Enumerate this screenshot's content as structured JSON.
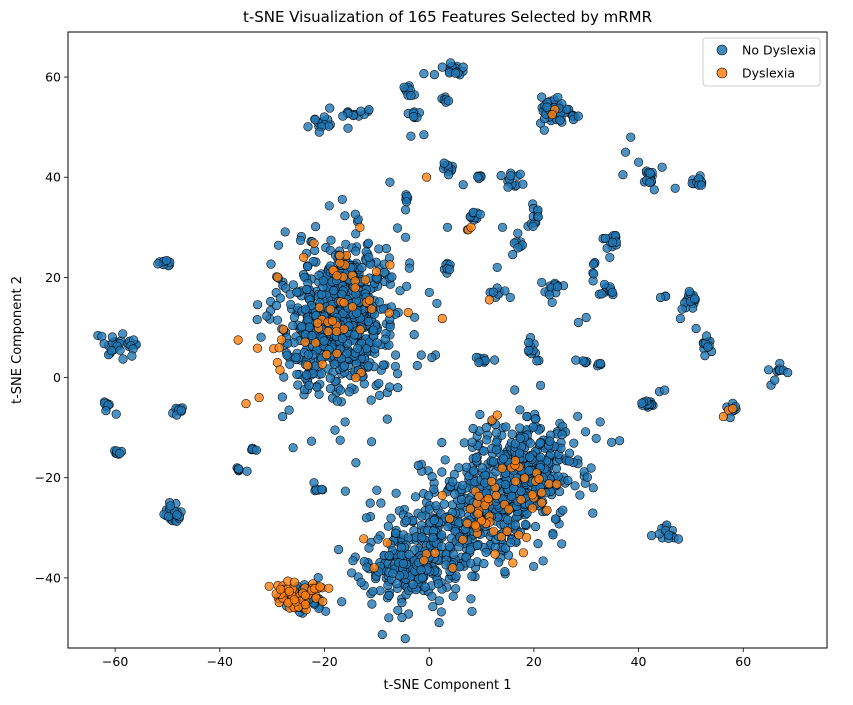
{
  "chart_data": {
    "type": "scatter",
    "title": "t-SNE Visualization of 165 Features Selected by mRMR",
    "xlabel": "t-SNE Component 1",
    "ylabel": "t-SNE Component 2",
    "xlim": [
      -69,
      76
    ],
    "ylim": [
      -54,
      69
    ],
    "xticks": [
      -60,
      -40,
      -20,
      0,
      20,
      40,
      60
    ],
    "yticks": [
      -40,
      -20,
      0,
      20,
      40,
      60
    ],
    "xtick_labels": [
      "−60",
      "−40",
      "−20",
      "0",
      "20",
      "40",
      "60"
    ],
    "ytick_labels": [
      "−40",
      "−20",
      "0",
      "20",
      "40",
      "60"
    ],
    "grid": false,
    "legend_position": "top-right",
    "series": [
      {
        "name": "No Dyslexia",
        "color": "#1f77b4",
        "clusters": [
          {
            "cx": -17,
            "cy": 12,
            "rx": 10,
            "ry": 14,
            "rot": -10,
            "n": 700
          },
          {
            "cx": 8,
            "cy": -28,
            "rx": 20,
            "ry": 10,
            "rot": 35,
            "n": 520
          },
          {
            "cx": 18,
            "cy": -18,
            "rx": 9,
            "ry": 9,
            "rot": 0,
            "n": 260
          },
          {
            "cx": -3,
            "cy": -38,
            "rx": 8,
            "ry": 4,
            "rot": 0,
            "n": 140
          },
          {
            "cx": -24,
            "cy": -44,
            "rx": 5,
            "ry": 3,
            "rot": -10,
            "n": 40
          },
          {
            "cx": -60,
            "cy": 6.5,
            "rx": 2.2,
            "ry": 2.2,
            "rot": 0,
            "n": 20
          },
          {
            "cx": -57,
            "cy": 7,
            "rx": 1.2,
            "ry": 1.8,
            "rot": 0,
            "n": 8
          },
          {
            "cx": -61.8,
            "cy": -5.5,
            "rx": 0.9,
            "ry": 0.9,
            "rot": 0,
            "n": 8
          },
          {
            "cx": -59.5,
            "cy": -14.8,
            "rx": 0.8,
            "ry": 0.6,
            "rot": 0,
            "n": 8
          },
          {
            "cx": -49,
            "cy": -27.5,
            "rx": 1.8,
            "ry": 1.8,
            "rot": 0,
            "n": 24
          },
          {
            "cx": -48,
            "cy": -6.5,
            "rx": 1.3,
            "ry": 0.8,
            "rot": 0,
            "n": 10
          },
          {
            "cx": -50.5,
            "cy": 23,
            "rx": 1.8,
            "ry": 1.4,
            "rot": 0,
            "n": 12
          },
          {
            "cx": -36.5,
            "cy": -18.3,
            "rx": 0.8,
            "ry": 0.6,
            "rot": 0,
            "n": 6
          },
          {
            "cx": -33.5,
            "cy": -14.5,
            "rx": 0.4,
            "ry": 0.4,
            "rot": 0,
            "n": 4
          },
          {
            "cx": -21.5,
            "cy": -22.4,
            "rx": 1.0,
            "ry": 0.4,
            "rot": 0,
            "n": 6
          },
          {
            "cx": -20.5,
            "cy": 50.8,
            "rx": 1.5,
            "ry": 1.3,
            "rot": 0,
            "n": 12
          },
          {
            "cx": -14,
            "cy": 52.8,
            "rx": 2.5,
            "ry": 1.0,
            "rot": 0,
            "n": 10
          },
          {
            "cx": -4,
            "cy": 57.5,
            "rx": 1.5,
            "ry": 1.3,
            "rot": 0,
            "n": 10
          },
          {
            "cx": -3,
            "cy": 52.5,
            "rx": 1.3,
            "ry": 1.2,
            "rot": 0,
            "n": 7
          },
          {
            "cx": 4.5,
            "cy": 61.5,
            "rx": 1.5,
            "ry": 1.2,
            "rot": 0,
            "n": 12
          },
          {
            "cx": 3,
            "cy": 55,
            "rx": 1.2,
            "ry": 1.2,
            "rot": 0,
            "n": 6
          },
          {
            "cx": 24,
            "cy": 53,
            "rx": 2.5,
            "ry": 2.5,
            "rot": 0,
            "n": 40
          },
          {
            "cx": 27.8,
            "cy": 52,
            "rx": 0.8,
            "ry": 0.8,
            "rot": 0,
            "n": 6
          },
          {
            "cx": 3.8,
            "cy": 41.5,
            "rx": 1.3,
            "ry": 1.5,
            "rot": 0,
            "n": 12
          },
          {
            "cx": 9.5,
            "cy": 40,
            "rx": 0.8,
            "ry": 0.6,
            "rot": 0,
            "n": 6
          },
          {
            "cx": -4.5,
            "cy": 35,
            "rx": 0.8,
            "ry": 1.6,
            "rot": 0,
            "n": 7
          },
          {
            "cx": 8.5,
            "cy": 32.5,
            "rx": 1.3,
            "ry": 1.3,
            "rot": 0,
            "n": 10
          },
          {
            "cx": 16.5,
            "cy": 39.5,
            "rx": 2.2,
            "ry": 2.2,
            "rot": 0,
            "n": 12
          },
          {
            "cx": 20,
            "cy": 32,
            "rx": 1.2,
            "ry": 3.5,
            "rot": 0,
            "n": 12
          },
          {
            "cx": 17,
            "cy": 26.5,
            "rx": 1.0,
            "ry": 2.0,
            "rot": 0,
            "n": 8
          },
          {
            "cx": 3.5,
            "cy": 22,
            "rx": 1.0,
            "ry": 1.0,
            "rot": 0,
            "n": 8
          },
          {
            "cx": 13,
            "cy": 17,
            "rx": 1.8,
            "ry": 1.2,
            "rot": 0,
            "n": 7
          },
          {
            "cx": 23.5,
            "cy": 18,
            "rx": 1.5,
            "ry": 1.4,
            "rot": 0,
            "n": 10
          },
          {
            "cx": 10,
            "cy": 3.5,
            "rx": 0.9,
            "ry": 0.6,
            "rot": 0,
            "n": 7
          },
          {
            "cx": 19.5,
            "cy": 5,
            "rx": 1.0,
            "ry": 2.5,
            "rot": 0,
            "n": 10
          },
          {
            "cx": 29.5,
            "cy": 3.2,
            "rx": 1.0,
            "ry": 0.4,
            "rot": 0,
            "n": 6
          },
          {
            "cx": 32.5,
            "cy": 2.4,
            "rx": 0.4,
            "ry": 0.4,
            "rot": 0,
            "n": 4
          },
          {
            "cx": 35,
            "cy": 27.5,
            "rx": 1.3,
            "ry": 1.3,
            "rot": 0,
            "n": 14
          },
          {
            "cx": 31.5,
            "cy": 20,
            "rx": 0.4,
            "ry": 3.0,
            "rot": 0,
            "n": 6
          },
          {
            "cx": 34,
            "cy": 17.5,
            "rx": 1.3,
            "ry": 1.2,
            "rot": 0,
            "n": 12
          },
          {
            "cx": 42,
            "cy": 40,
            "rx": 1.4,
            "ry": 1.4,
            "rot": 0,
            "n": 14
          },
          {
            "cx": 51,
            "cy": 39,
            "rx": 1.4,
            "ry": 0.9,
            "rot": 0,
            "n": 12
          },
          {
            "cx": 41.5,
            "cy": -5,
            "rx": 1.4,
            "ry": 1.0,
            "rot": 0,
            "n": 14
          },
          {
            "cx": 50.2,
            "cy": 15.5,
            "rx": 1.5,
            "ry": 2.0,
            "rot": 0,
            "n": 18
          },
          {
            "cx": 53,
            "cy": 6.5,
            "rx": 1.2,
            "ry": 1.2,
            "rot": 0,
            "n": 10
          },
          {
            "cx": 45,
            "cy": 16,
            "rx": 0.6,
            "ry": 0.3,
            "rot": 0,
            "n": 3
          },
          {
            "cx": 45.5,
            "cy": -31,
            "rx": 1.8,
            "ry": 1.0,
            "rot": 0,
            "n": 14
          },
          {
            "cx": 67,
            "cy": 1.5,
            "rx": 1.5,
            "ry": 1.5,
            "rot": 0,
            "n": 8
          },
          {
            "cx": 57.5,
            "cy": -6.5,
            "rx": 1.0,
            "ry": 1.2,
            "rot": 0,
            "n": 5
          }
        ],
        "points": [
          [
            -59.8,
            -7.3
          ],
          [
            -58.5,
            3.7
          ],
          [
            -56.8,
            4.3
          ],
          [
            -34.8,
            -18.7
          ],
          [
            -33,
            -14.5
          ],
          [
            -28,
            -7.8
          ],
          [
            -26,
            -14
          ],
          [
            -22,
            -21
          ],
          [
            -18,
            -10.5
          ],
          [
            -17,
            -12.5
          ],
          [
            -16,
            -22.7
          ],
          [
            -14,
            -17
          ],
          [
            -12,
            -28
          ],
          [
            -11,
            -12.8
          ],
          [
            -10,
            -22.5
          ],
          [
            -8,
            -8.3
          ],
          [
            -6,
            -2
          ],
          [
            -1,
            48.5
          ],
          [
            1,
            60.5
          ],
          [
            -1,
            60.7
          ],
          [
            -4.5,
            28
          ],
          [
            -7.5,
            39
          ],
          [
            6.5,
            38.5
          ],
          [
            -19,
            53.8
          ],
          [
            -15.5,
            49.8
          ],
          [
            -11.5,
            53.5
          ],
          [
            -3.5,
            48.2
          ],
          [
            9,
            4
          ],
          [
            9.5,
            3
          ],
          [
            12.5,
            3.5
          ],
          [
            15.5,
            16
          ],
          [
            23,
            16.5
          ],
          [
            21.5,
            19
          ],
          [
            23.5,
            15
          ],
          [
            19,
            7
          ],
          [
            34.5,
            24
          ],
          [
            35,
            17
          ],
          [
            37,
            40.5
          ],
          [
            37.5,
            45
          ],
          [
            38.5,
            48
          ],
          [
            40,
            43
          ],
          [
            44.5,
            42
          ],
          [
            43,
            37.5
          ],
          [
            47,
            37.8
          ],
          [
            52,
            38.4
          ],
          [
            48,
            11.8
          ],
          [
            51,
            9.8
          ],
          [
            53,
            8.3
          ],
          [
            44,
            -2.8
          ],
          [
            45,
            -2.5
          ],
          [
            30,
            12
          ],
          [
            28.5,
            11
          ],
          [
            14,
            30
          ],
          [
            13,
            22
          ],
          [
            3.5,
            30
          ],
          [
            1.2,
            4.5
          ],
          [
            0.5,
            4
          ],
          [
            -1.5,
            4.5
          ],
          [
            7.3,
            29.5
          ],
          [
            5,
            60.8
          ],
          [
            6.5,
            62
          ],
          [
            2.5,
            62
          ],
          [
            -3.5,
            56.3
          ],
          [
            21.5,
            56
          ],
          [
            25,
            51.4
          ],
          [
            22,
            49.4
          ],
          [
            -21.8,
            51.5
          ],
          [
            -21,
            49
          ],
          [
            -16.5,
            52.2
          ],
          [
            57.5,
            -8
          ],
          [
            58.5,
            -5.8
          ],
          [
            65.3,
            -1.5
          ],
          [
            68.5,
            1
          ],
          [
            66,
            -0.5
          ]
        ]
      },
      {
        "name": "Dyslexia",
        "color": "#ff7f0e",
        "clusters": [
          {
            "cx": -26,
            "cy": -43.5,
            "rx": 4.5,
            "ry": 2.5,
            "rot": -15,
            "n": 45
          },
          {
            "cx": -21.5,
            "cy": -41.8,
            "rx": 1.8,
            "ry": 0.8,
            "rot": 0,
            "n": 8
          },
          {
            "cx": -19,
            "cy": 12,
            "rx": 9,
            "ry": 12,
            "rot": -10,
            "n": 45
          },
          {
            "cx": 12,
            "cy": -27,
            "rx": 11,
            "ry": 7,
            "rot": 35,
            "n": 40
          },
          {
            "cx": 19,
            "cy": -20,
            "rx": 6,
            "ry": 6,
            "rot": 0,
            "n": 12
          }
        ],
        "points": [
          [
            -0.5,
            40
          ],
          [
            2.5,
            11.8
          ],
          [
            11.5,
            15.5
          ],
          [
            7.5,
            29.5
          ],
          [
            -22,
            26.8
          ],
          [
            -24,
            24
          ],
          [
            -7.5,
            22.5
          ],
          [
            -29,
            3
          ],
          [
            -28.5,
            1.5
          ],
          [
            -36.5,
            7.5
          ],
          [
            -32.5,
            -4
          ],
          [
            -35,
            -5.2
          ],
          [
            -4,
            13
          ],
          [
            -13,
            1
          ],
          [
            -14,
            0
          ],
          [
            21.5,
            -25
          ],
          [
            22.5,
            -26.5
          ],
          [
            18,
            -35
          ],
          [
            16,
            -37
          ],
          [
            12,
            -8.5
          ],
          [
            13,
            -7.5
          ],
          [
            -1,
            -36.5
          ],
          [
            4.5,
            -38
          ],
          [
            -12.5,
            -32.2
          ],
          [
            -10.5,
            -38
          ],
          [
            -8,
            -33
          ],
          [
            56.2,
            -7.8
          ],
          [
            57.2,
            -6.5
          ],
          [
            58,
            -6.2
          ],
          [
            24,
            53.5
          ],
          [
            23.5,
            52.5
          ],
          [
            8,
            30
          ]
        ]
      }
    ]
  }
}
